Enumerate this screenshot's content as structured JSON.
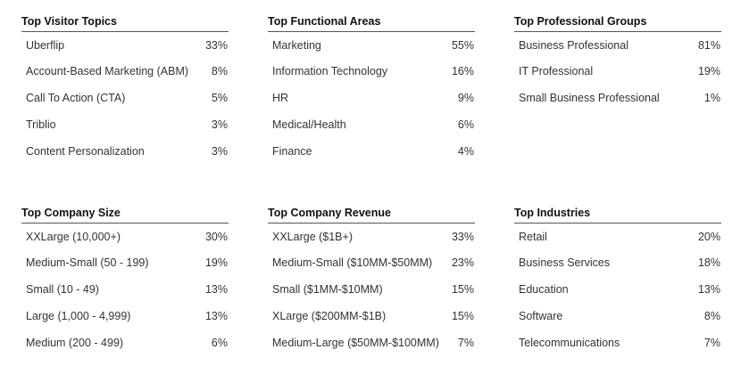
{
  "panels": [
    {
      "title": "Top Visitor Topics",
      "rows": [
        {
          "label": "Uberflip",
          "value": "33%"
        },
        {
          "label": "Account-Based Marketing (ABM)",
          "value": "8%"
        },
        {
          "label": "Call To Action (CTA)",
          "value": "5%"
        },
        {
          "label": "Triblio",
          "value": "3%"
        },
        {
          "label": "Content Personalization",
          "value": "3%"
        }
      ]
    },
    {
      "title": "Top Functional Areas",
      "rows": [
        {
          "label": "Marketing",
          "value": "55%"
        },
        {
          "label": "Information Technology",
          "value": "16%"
        },
        {
          "label": "HR",
          "value": "9%"
        },
        {
          "label": "Medical/Health",
          "value": "6%"
        },
        {
          "label": "Finance",
          "value": "4%"
        }
      ]
    },
    {
      "title": "Top Professional Groups",
      "rows": [
        {
          "label": "Business Professional",
          "value": "81%"
        },
        {
          "label": "IT Professional",
          "value": "19%"
        },
        {
          "label": "Small Business Professional",
          "value": "1%"
        }
      ]
    },
    {
      "title": "Top Company Size",
      "rows": [
        {
          "label": "XXLarge (10,000+)",
          "value": "30%"
        },
        {
          "label": "Medium-Small (50 - 199)",
          "value": "19%"
        },
        {
          "label": "Small (10 - 49)",
          "value": "13%"
        },
        {
          "label": "Large (1,000 - 4,999)",
          "value": "13%"
        },
        {
          "label": "Medium (200 - 499)",
          "value": "6%"
        }
      ]
    },
    {
      "title": "Top Company Revenue",
      "rows": [
        {
          "label": "XXLarge ($1B+)",
          "value": "33%"
        },
        {
          "label": "Medium-Small ($10MM-$50MM)",
          "value": "23%"
        },
        {
          "label": "Small ($1MM-$10MM)",
          "value": "15%"
        },
        {
          "label": "XLarge ($200MM-$1B)",
          "value": "15%"
        },
        {
          "label": "Medium-Large ($50MM-$100MM)",
          "value": "7%"
        }
      ]
    },
    {
      "title": "Top Industries",
      "rows": [
        {
          "label": "Retail",
          "value": "20%"
        },
        {
          "label": "Business Services",
          "value": "18%"
        },
        {
          "label": "Education",
          "value": "13%"
        },
        {
          "label": "Software",
          "value": "8%"
        },
        {
          "label": "Telecommunications",
          "value": "7%"
        }
      ]
    }
  ]
}
